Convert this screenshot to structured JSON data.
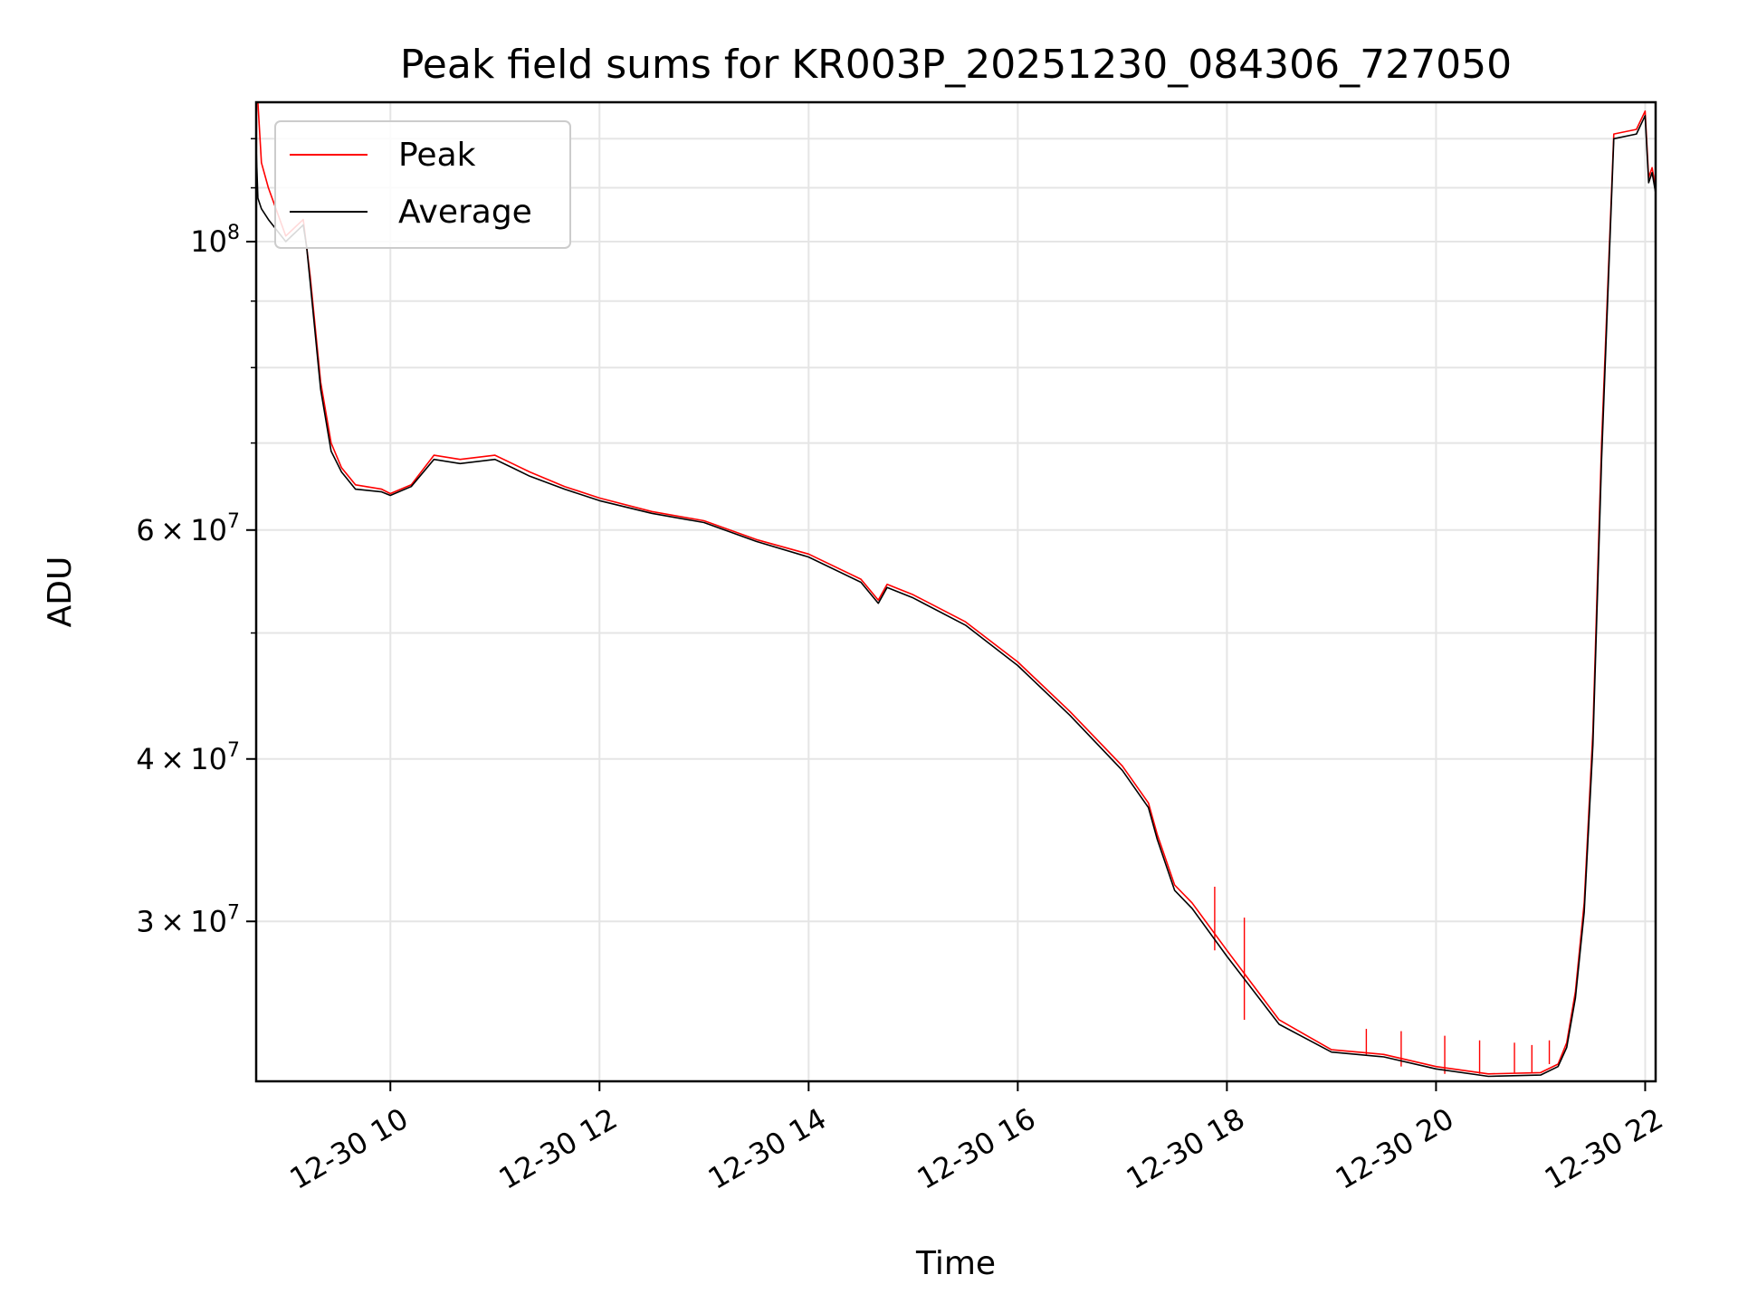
{
  "chart_data": {
    "type": "line",
    "title": "Peak field sums for KR003P_20251230_084306_727050",
    "xlabel": "Time",
    "ylabel": "ADU",
    "yscale": "log",
    "ylim": [
      22600000,
      128000000
    ],
    "xlim": [
      "12-30 08:43",
      "12-30 22:06"
    ],
    "grid": true,
    "legend_position": "top-left",
    "x_tick_labels": [
      "12-30 10",
      "12-30 12",
      "12-30 14",
      "12-30 16",
      "12-30 18",
      "12-30 20",
      "12-30 22"
    ],
    "y_tick_labels": [
      {
        "base": "10",
        "exp": "8",
        "value": 100000000
      },
      {
        "mant": "6",
        "base": "10",
        "exp": "7",
        "value": 60000000
      },
      {
        "mant": "4",
        "base": "10",
        "exp": "7",
        "value": 40000000
      },
      {
        "mant": "3",
        "base": "10",
        "exp": "7",
        "value": 30000000
      }
    ],
    "x": [
      "12-30 08:43",
      "12-30 08:44",
      "12-30 08:46",
      "12-30 08:50",
      "12-30 09:00",
      "12-30 09:10",
      "12-30 09:12",
      "12-30 09:14",
      "12-30 09:20",
      "12-30 09:26",
      "12-30 09:32",
      "12-30 09:40",
      "12-30 09:55",
      "12-30 10:00",
      "12-30 10:12",
      "12-30 10:25",
      "12-30 10:40",
      "12-30 11:00",
      "12-30 11:10",
      "12-30 11:20",
      "12-30 11:40",
      "12-30 12:00",
      "12-30 12:30",
      "12-30 13:00",
      "12-30 13:30",
      "12-30 14:00",
      "12-30 14:30",
      "12-30 14:40",
      "12-30 14:45",
      "12-30 15:00",
      "12-30 15:30",
      "12-30 16:00",
      "12-30 16:30",
      "12-30 17:00",
      "12-30 17:15",
      "12-30 17:20",
      "12-30 17:30",
      "12-30 17:40",
      "12-30 18:00",
      "12-30 18:30",
      "12-30 19:00",
      "12-30 19:30",
      "12-30 20:00",
      "12-30 20:30",
      "12-30 21:00",
      "12-30 21:10",
      "12-30 21:15",
      "12-30 21:20",
      "12-30 21:25",
      "12-30 21:30",
      "12-30 21:35",
      "12-30 21:42",
      "12-30 21:55",
      "12-30 22:00",
      "12-30 22:02",
      "12-30 22:04",
      "12-30 22:06"
    ],
    "series": [
      {
        "name": "Peak",
        "color": "#ff0000",
        "values": [
          130000000,
          128000000,
          115000000,
          110000000,
          101000000,
          104000000,
          99000000,
          94000000,
          78000000,
          70000000,
          67000000,
          65000000,
          64500000,
          64000000,
          65000000,
          68500000,
          68000000,
          68500000,
          67500000,
          66500000,
          64800000,
          63500000,
          62000000,
          61000000,
          59000000,
          57500000,
          55000000,
          53000000,
          54500000,
          53500000,
          51000000,
          47500000,
          43500000,
          39500000,
          37000000,
          35000000,
          32000000,
          31000000,
          28500000,
          25200000,
          23900000,
          23700000,
          23200000,
          22900000,
          22950000,
          23300000,
          24200000,
          26500000,
          31000000,
          42000000,
          70000000,
          121000000,
          122000000,
          126000000,
          112000000,
          114000000,
          110000000
        ],
        "spikes": [
          [
            "12-30 19:20",
            24800000
          ],
          [
            "12-30 19:40",
            24700000
          ],
          [
            "12-30 20:05",
            24500000
          ],
          [
            "12-30 20:25",
            24300000
          ],
          [
            "12-30 20:45",
            24200000
          ],
          [
            "12-30 20:55",
            24100000
          ],
          [
            "12-30 21:05",
            24300000
          ],
          [
            "12-30 17:53",
            31900000
          ],
          [
            "12-30 18:10",
            30200000
          ]
        ]
      },
      {
        "name": "Average",
        "color": "#000000",
        "values": [
          118000000,
          108000000,
          106000000,
          104000000,
          100000000,
          103000000,
          99000000,
          93000000,
          77000000,
          69000000,
          66500000,
          64500000,
          64200000,
          63800000,
          64800000,
          68000000,
          67500000,
          68000000,
          67000000,
          66000000,
          64500000,
          63200000,
          61800000,
          60800000,
          58800000,
          57200000,
          54700000,
          52700000,
          54200000,
          53200000,
          50700000,
          47200000,
          43200000,
          39200000,
          36700000,
          34700000,
          31700000,
          30700000,
          28200000,
          25000000,
          23800000,
          23600000,
          23100000,
          22800000,
          22850000,
          23200000,
          24000000,
          26200000,
          30500000,
          41000000,
          68000000,
          120000000,
          121000000,
          125000000,
          111000000,
          113000000,
          109000000
        ]
      }
    ]
  }
}
